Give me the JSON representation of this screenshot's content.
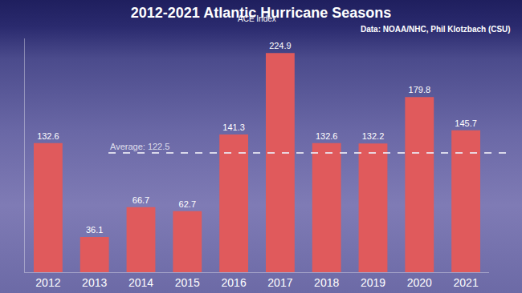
{
  "chart_data": {
    "type": "bar",
    "title": "2012-2021 Atlantic Hurricane Seasons",
    "subtitle": "ACE Index",
    "source": "Data: NOAA/NHC, Phil Klotzbach (CSU)",
    "categories": [
      "2012",
      "2013",
      "2014",
      "2015",
      "2016",
      "2017",
      "2018",
      "2019",
      "2020",
      "2021"
    ],
    "values": [
      132.6,
      36.1,
      66.7,
      62.7,
      141.3,
      224.9,
      132.6,
      132.2,
      179.8,
      145.7
    ],
    "color": "#e05a5c",
    "ylim": [
      0,
      240
    ],
    "grid": false,
    "data_labels": true,
    "tick_labels": "x",
    "average": {
      "value": 122.5,
      "label": "Average: 122.5"
    }
  }
}
